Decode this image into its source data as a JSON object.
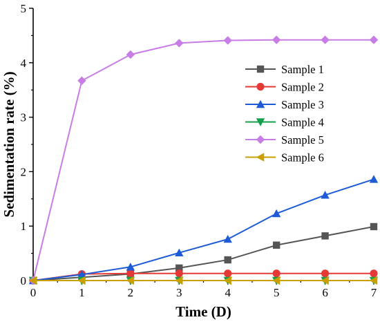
{
  "chart_data": {
    "type": "line",
    "title": "",
    "xlabel": "Time (D)",
    "ylabel": "Sedimentation rate (%)",
    "xlim": [
      0,
      7
    ],
    "ylim": [
      0,
      5
    ],
    "x_ticks": [
      "0",
      "1",
      "2",
      "3",
      "4",
      "5",
      "6",
      "7"
    ],
    "y_ticks": [
      "0",
      "1",
      "2",
      "3",
      "4",
      "5"
    ],
    "x": [
      0,
      1,
      2,
      3,
      4,
      5,
      6,
      7
    ],
    "grid": false,
    "legend_position": "top-right",
    "series": [
      {
        "name": "Sample 1",
        "color": "#555555",
        "marker": "square",
        "values": [
          0,
          0.06,
          0.12,
          0.23,
          0.38,
          0.65,
          0.82,
          0.99
        ]
      },
      {
        "name": "Sample 2",
        "color": "#e53935",
        "marker": "circle",
        "values": [
          0,
          0.12,
          0.13,
          0.13,
          0.13,
          0.13,
          0.13,
          0.13
        ]
      },
      {
        "name": "Sample 3",
        "color": "#1e5bd6",
        "marker": "triangle-up",
        "values": [
          0,
          0.11,
          0.25,
          0.51,
          0.76,
          1.23,
          1.57,
          1.86
        ]
      },
      {
        "name": "Sample 4",
        "color": "#12a14a",
        "marker": "triangle-down",
        "values": [
          0,
          0.0,
          0.0,
          0.0,
          0.0,
          0.0,
          0.0,
          0.0
        ]
      },
      {
        "name": "Sample 5",
        "color": "#c77ce6",
        "marker": "diamond",
        "values": [
          0,
          3.67,
          4.15,
          4.36,
          4.41,
          4.42,
          4.42,
          4.42
        ]
      },
      {
        "name": "Sample 6",
        "color": "#c9a000",
        "marker": "triangle-left",
        "values": [
          0,
          0.0,
          0.0,
          0.0,
          0.0,
          0.0,
          0.0,
          0.0
        ]
      }
    ]
  }
}
